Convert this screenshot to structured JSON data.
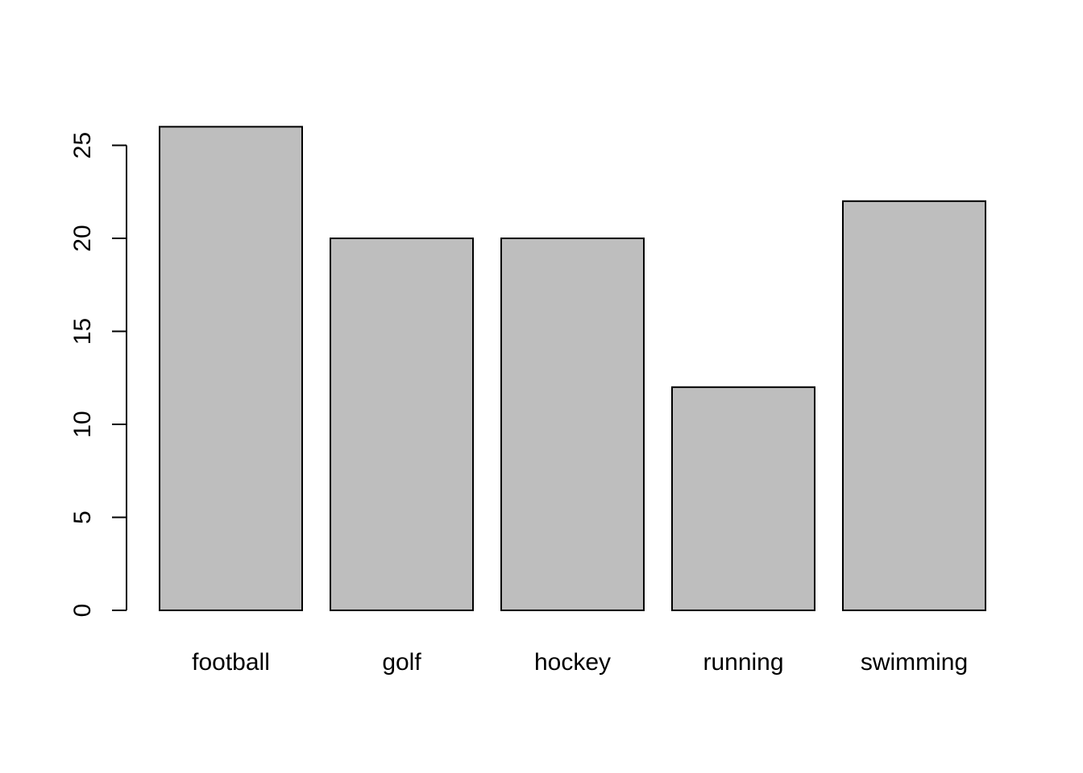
{
  "chart_data": {
    "type": "bar",
    "title": "",
    "xlabel": "",
    "ylabel": "",
    "categories": [
      "football",
      "golf",
      "hockey",
      "running",
      "swimming"
    ],
    "values": [
      26,
      20,
      20,
      12,
      22
    ],
    "ylim": [
      0,
      26
    ],
    "yticks": [
      "0",
      "5",
      "10",
      "15",
      "20",
      "25"
    ],
    "grid": false,
    "legend": "none",
    "colors": {
      "bar_fill": "#bebebe",
      "bar_stroke": "#000000",
      "axis": "#000000",
      "text": "#000000",
      "background": "#ffffff"
    }
  }
}
